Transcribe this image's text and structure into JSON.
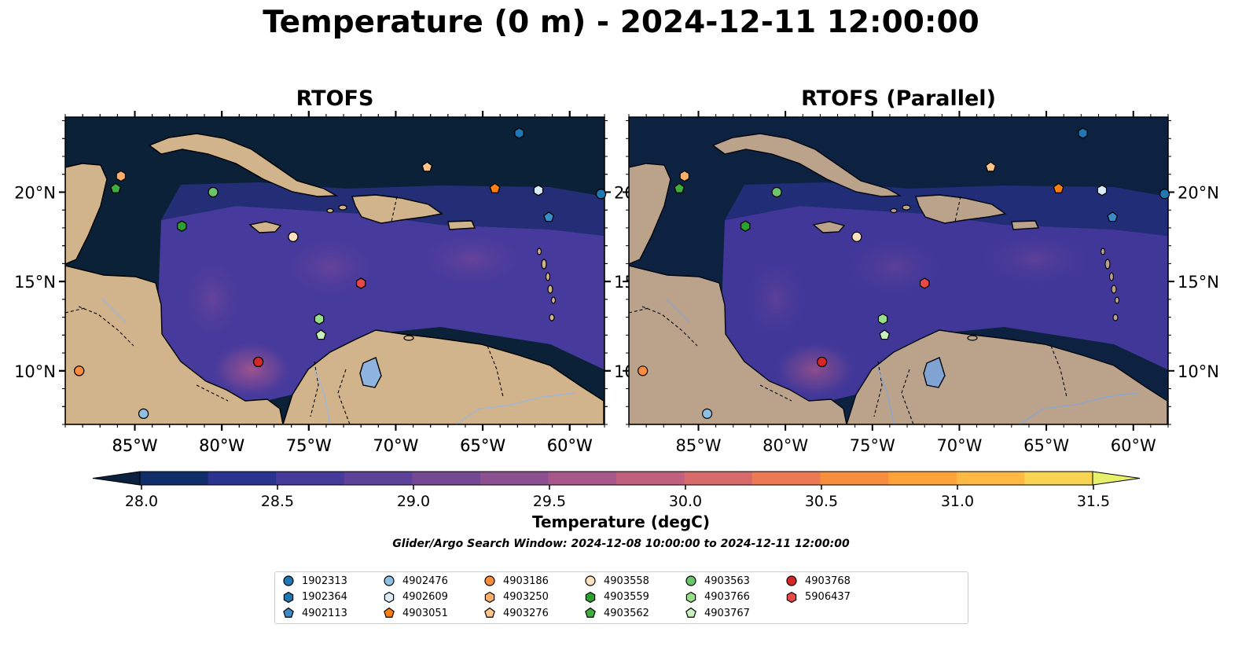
{
  "title": "Temperature (0 m) - 2024-12-11 12:00:00",
  "panels": [
    {
      "title": "RTOFS"
    },
    {
      "title": "RTOFS (Parallel)"
    }
  ],
  "axes": {
    "lon_ticks": [
      "85°W",
      "80°W",
      "75°W",
      "70°W",
      "65°W",
      "60°W"
    ],
    "lon_values": [
      -85,
      -80,
      -75,
      -70,
      -65,
      -60
    ],
    "lat_ticks": [
      "20°N",
      "15°N",
      "10°N"
    ],
    "lat_values": [
      20,
      15,
      10
    ],
    "lon_range": [
      -89,
      -58
    ],
    "lat_range": [
      7,
      24.2
    ]
  },
  "colorbar": {
    "label": "Temperature (degC)",
    "ticks": [
      "28.0",
      "28.5",
      "29.0",
      "29.5",
      "30.0",
      "30.5",
      "31.0",
      "31.5"
    ],
    "tick_values": [
      28.0,
      28.5,
      29.0,
      29.5,
      30.0,
      30.5,
      31.0,
      31.5
    ],
    "range": [
      27.75,
      31.75
    ],
    "colors": [
      "#0b213f",
      "#102e6a",
      "#2a3490",
      "#463a9c",
      "#5e4198",
      "#744894",
      "#8c4f90",
      "#a8578a",
      "#c05f7e",
      "#d86a6a",
      "#ee7a53",
      "#f98d3e",
      "#fea23a",
      "#fdb944",
      "#f9d452",
      "#e8ef6a"
    ]
  },
  "search_window": "Glider/Argo Search Window: 2024-12-08 10:00:00 to 2024-12-11 12:00:00",
  "legend": [
    {
      "id": "1902313",
      "shape": "circle",
      "color": "#1f77b4"
    },
    {
      "id": "1902364",
      "shape": "hexagon",
      "color": "#1f77b4"
    },
    {
      "id": "4902113",
      "shape": "pentagon",
      "color": "#3b8bc6"
    },
    {
      "id": "4902476",
      "shape": "circle",
      "color": "#8ec0e3"
    },
    {
      "id": "4902609",
      "shape": "hexagon",
      "color": "#d9ecfa"
    },
    {
      "id": "4903051",
      "shape": "pentagon",
      "color": "#ff7f0e"
    },
    {
      "id": "4903186",
      "shape": "circle",
      "color": "#fd8d3c"
    },
    {
      "id": "4903250",
      "shape": "hexagon",
      "color": "#fdae6b"
    },
    {
      "id": "4903276",
      "shape": "pentagon",
      "color": "#fdc48c"
    },
    {
      "id": "4903558",
      "shape": "circle",
      "color": "#fde0c0"
    },
    {
      "id": "4903559",
      "shape": "hexagon",
      "color": "#2ca02c"
    },
    {
      "id": "4903562",
      "shape": "pentagon",
      "color": "#3fae3f"
    },
    {
      "id": "4903563",
      "shape": "circle",
      "color": "#6cc56c"
    },
    {
      "id": "4903766",
      "shape": "hexagon",
      "color": "#98df8a"
    },
    {
      "id": "4903767",
      "shape": "pentagon",
      "color": "#c7f0bc"
    },
    {
      "id": "4903768",
      "shape": "circle",
      "color": "#d62728"
    },
    {
      "id": "5906437",
      "shape": "hexagon",
      "color": "#e94848"
    }
  ],
  "observations": [
    {
      "id": "1902313",
      "lon": -58.2,
      "lat": 19.9
    },
    {
      "id": "1902364",
      "lon": -62.9,
      "lat": 23.3
    },
    {
      "id": "4902113",
      "lon": -61.2,
      "lat": 18.6
    },
    {
      "id": "4902476",
      "lon": -84.5,
      "lat": 7.6
    },
    {
      "id": "4902609",
      "lon": -61.8,
      "lat": 20.1
    },
    {
      "id": "4903051",
      "lon": -64.3,
      "lat": 20.2
    },
    {
      "id": "4903186",
      "lon": -88.2,
      "lat": 10.0
    },
    {
      "id": "4903250",
      "lon": -85.8,
      "lat": 20.9
    },
    {
      "id": "4903276",
      "lon": -68.2,
      "lat": 21.4
    },
    {
      "id": "4903558",
      "lon": -75.9,
      "lat": 17.5
    },
    {
      "id": "4903559",
      "lon": -82.3,
      "lat": 18.1
    },
    {
      "id": "4903562",
      "lon": -86.1,
      "lat": 20.2
    },
    {
      "id": "4903563",
      "lon": -80.5,
      "lat": 20.0
    },
    {
      "id": "4903766",
      "lon": -74.4,
      "lat": 12.9
    },
    {
      "id": "4903767",
      "lon": -74.3,
      "lat": 12.0
    },
    {
      "id": "4903768",
      "lon": -77.9,
      "lat": 10.5
    },
    {
      "id": "5906437",
      "lon": -72.0,
      "lat": 14.9
    }
  ]
}
